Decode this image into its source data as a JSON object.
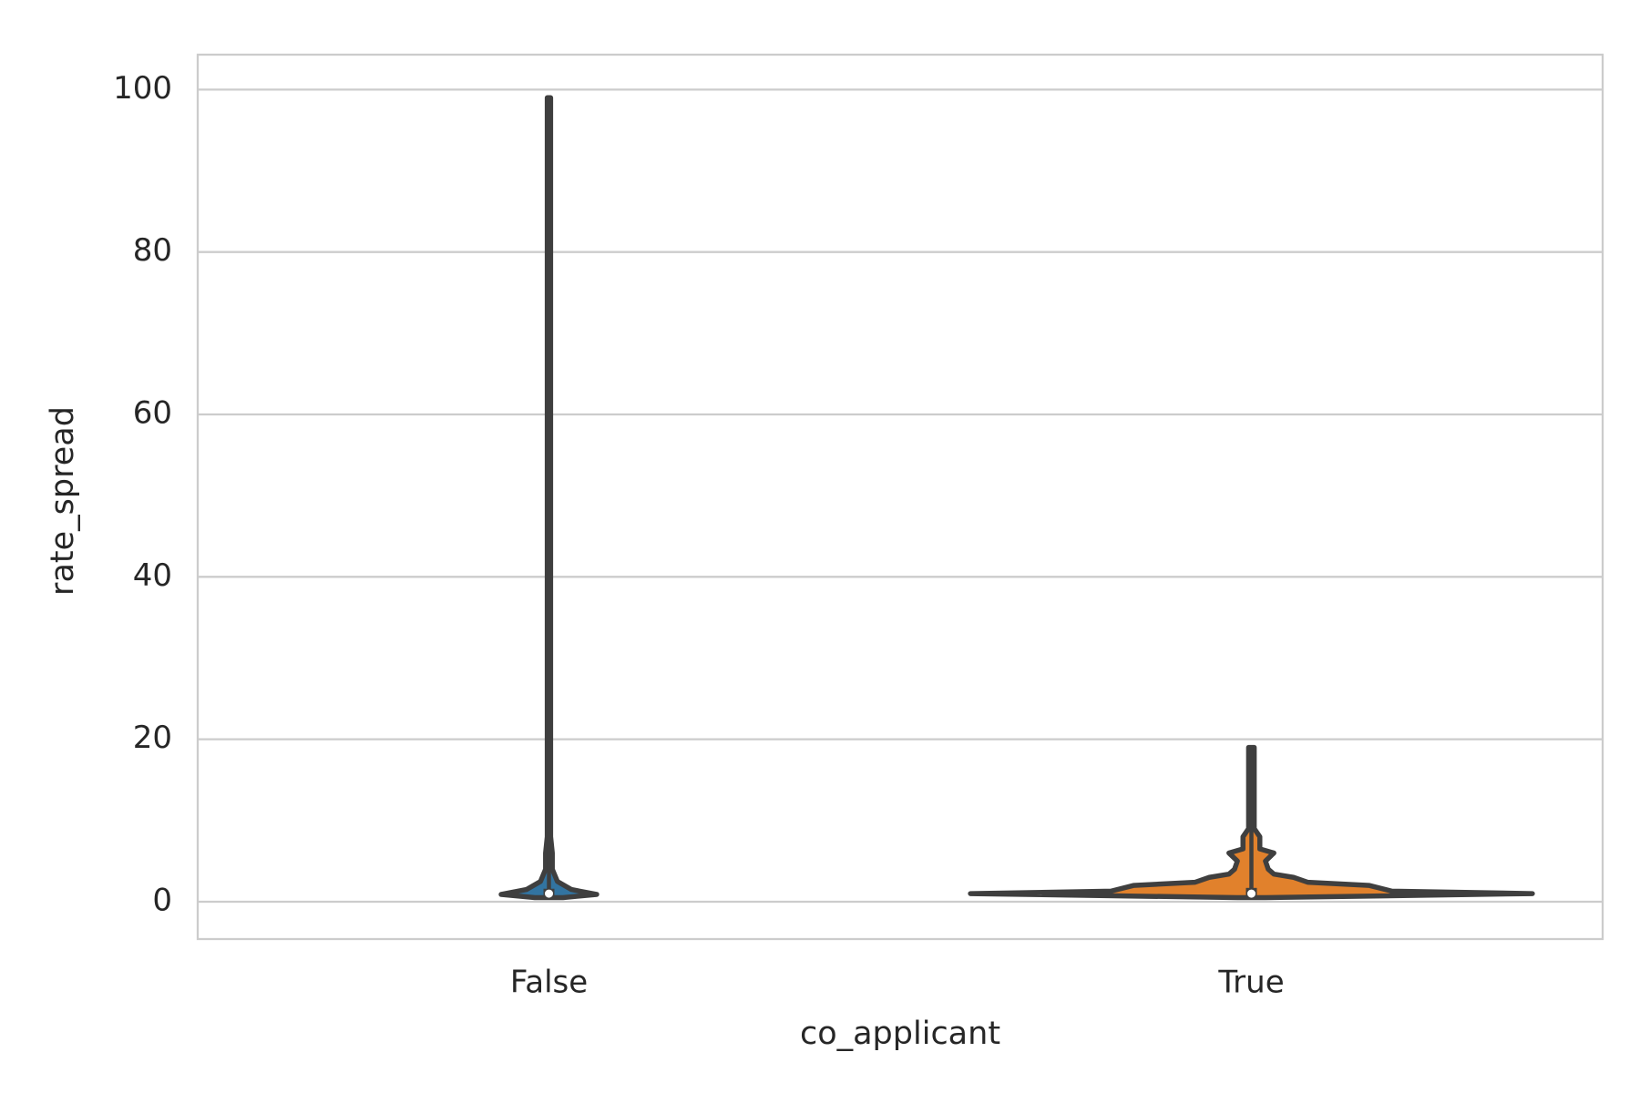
{
  "chart_data": {
    "type": "violin",
    "xlabel": "co_applicant",
    "ylabel": "rate_spread",
    "categories": [
      "False",
      "True"
    ],
    "ylim": [
      -4.6,
      104.3
    ],
    "yticks": [
      0,
      20,
      40,
      60,
      80,
      100
    ],
    "grid": true,
    "violins": [
      {
        "color": "#3274a1",
        "min": 0.5,
        "max": 99,
        "q1": 0.8,
        "q3": 1.6,
        "median": 1.0,
        "density_y": [
          0.5,
          0.9,
          1.5,
          2.5,
          4,
          6,
          8,
          20,
          99
        ],
        "density_width": [
          0.05,
          0.17,
          0.08,
          0.03,
          0.012,
          0.012,
          0.006,
          0.006,
          0.006
        ]
      },
      {
        "color": "#e1812c",
        "min": 0.5,
        "max": 19,
        "q1": 0.8,
        "q3": 1.7,
        "median": 1.0,
        "density_y": [
          0.5,
          1.0,
          1.3,
          2.0,
          2.4,
          3.0,
          3.4,
          4.0,
          5.0,
          6.0,
          6.5,
          7.5,
          8.0,
          9.0,
          19
        ],
        "density_width": [
          0.05,
          1.0,
          0.5,
          0.42,
          0.2,
          0.15,
          0.08,
          0.06,
          0.05,
          0.08,
          0.03,
          0.03,
          0.03,
          0.01,
          0.01
        ]
      }
    ]
  }
}
